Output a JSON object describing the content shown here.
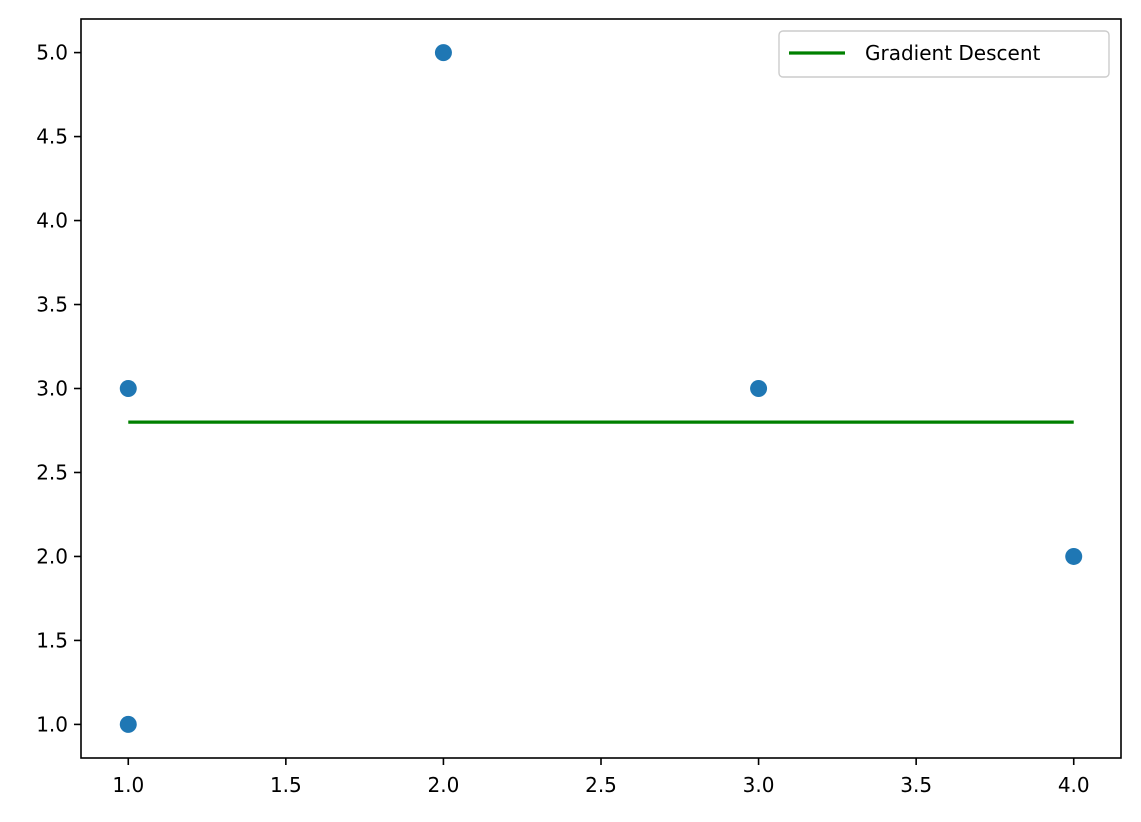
{
  "chart_data": {
    "type": "scatter",
    "title": "",
    "xlabel": "",
    "ylabel": "",
    "xlim": [
      0.85,
      4.15
    ],
    "ylim": [
      0.8,
      5.2
    ],
    "x_ticks": [
      "1.0",
      "1.5",
      "2.0",
      "2.5",
      "3.0",
      "3.5",
      "4.0"
    ],
    "y_ticks": [
      "1.0",
      "1.5",
      "2.0",
      "2.5",
      "3.0",
      "3.5",
      "4.0",
      "4.5",
      "5.0"
    ],
    "grid": false,
    "legend_position": "top-right",
    "series": [
      {
        "kind": "scatter",
        "color": "#1f77b4",
        "points": [
          {
            "x": 1,
            "y": 3
          },
          {
            "x": 1,
            "y": 1
          },
          {
            "x": 2,
            "y": 5
          },
          {
            "x": 3,
            "y": 3
          },
          {
            "x": 4,
            "y": 2
          }
        ]
      },
      {
        "kind": "line",
        "name": "Gradient Descent",
        "color": "#008000",
        "points": [
          {
            "x": 1,
            "y": 2.8
          },
          {
            "x": 4,
            "y": 2.8
          }
        ]
      }
    ]
  }
}
